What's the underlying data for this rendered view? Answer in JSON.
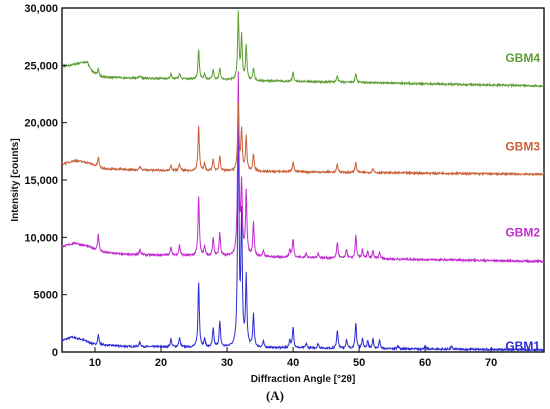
{
  "chart_data": {
    "type": "line",
    "title": "",
    "xlabel": "Diffraction Angle [°2θ]",
    "ylabel": "Intensity [counts]",
    "xlim": [
      5,
      78
    ],
    "ylim": [
      0,
      30000
    ],
    "xticks": [
      10,
      20,
      30,
      40,
      50,
      60,
      70
    ],
    "yticks": [
      0,
      5000,
      10000,
      15000,
      20000,
      25000,
      30000
    ],
    "ytick_labels": [
      "0",
      "5000",
      "10,000",
      "15,000",
      "20,000",
      "25,000",
      "30,000"
    ],
    "grid": false,
    "panel_label": "(A)",
    "series": [
      {
        "name": "GBM1",
        "color": "#2b2bd4",
        "background": [
          [
            5,
            1000
          ],
          [
            6.5,
            1300
          ],
          [
            8,
            1100
          ],
          [
            10,
            650
          ],
          [
            15,
            480
          ],
          [
            25,
            420
          ],
          [
            35,
            380
          ],
          [
            50,
            300
          ],
          [
            78,
            180
          ]
        ],
        "peaks": [
          {
            "x": 10.5,
            "h": 900
          },
          {
            "x": 16.8,
            "h": 450
          },
          {
            "x": 21.5,
            "h": 700
          },
          {
            "x": 22.8,
            "h": 800
          },
          {
            "x": 25.7,
            "h": 5600
          },
          {
            "x": 26.6,
            "h": 700
          },
          {
            "x": 27.9,
            "h": 1600
          },
          {
            "x": 28.9,
            "h": 2200
          },
          {
            "x": 31.7,
            "h": 20200
          },
          {
            "x": 32.2,
            "h": 11000
          },
          {
            "x": 32.9,
            "h": 6000
          },
          {
            "x": 34.0,
            "h": 2800
          },
          {
            "x": 35.5,
            "h": 500
          },
          {
            "x": 39.5,
            "h": 700
          },
          {
            "x": 40.0,
            "h": 1800
          },
          {
            "x": 42.0,
            "h": 400
          },
          {
            "x": 43.8,
            "h": 400
          },
          {
            "x": 46.7,
            "h": 1600
          },
          {
            "x": 48.1,
            "h": 800
          },
          {
            "x": 49.5,
            "h": 2200
          },
          {
            "x": 50.5,
            "h": 900
          },
          {
            "x": 51.3,
            "h": 700
          },
          {
            "x": 52.1,
            "h": 800
          },
          {
            "x": 53.1,
            "h": 700
          },
          {
            "x": 55.9,
            "h": 300
          },
          {
            "x": 60.0,
            "h": 250
          },
          {
            "x": 64.0,
            "h": 250
          }
        ]
      },
      {
        "name": "GBM2",
        "color": "#c02ccf",
        "background": [
          [
            5,
            9200
          ],
          [
            7,
            9500
          ],
          [
            9,
            9200
          ],
          [
            11,
            8700
          ],
          [
            15,
            8500
          ],
          [
            25,
            8400
          ],
          [
            35,
            8300
          ],
          [
            50,
            8150
          ],
          [
            78,
            7900
          ]
        ],
        "peaks": [
          {
            "x": 10.5,
            "h": 1500
          },
          {
            "x": 16.8,
            "h": 500
          },
          {
            "x": 21.5,
            "h": 700
          },
          {
            "x": 22.8,
            "h": 900
          },
          {
            "x": 25.7,
            "h": 5100
          },
          {
            "x": 26.6,
            "h": 800
          },
          {
            "x": 27.9,
            "h": 1500
          },
          {
            "x": 28.9,
            "h": 2000
          },
          {
            "x": 31.7,
            "h": 15800
          },
          {
            "x": 32.2,
            "h": 6000
          },
          {
            "x": 32.9,
            "h": 5600
          },
          {
            "x": 34.0,
            "h": 3000
          },
          {
            "x": 35.5,
            "h": 500
          },
          {
            "x": 39.5,
            "h": 700
          },
          {
            "x": 40.0,
            "h": 1600
          },
          {
            "x": 42.0,
            "h": 400
          },
          {
            "x": 43.8,
            "h": 400
          },
          {
            "x": 46.7,
            "h": 1400
          },
          {
            "x": 48.1,
            "h": 800
          },
          {
            "x": 49.5,
            "h": 2000
          },
          {
            "x": 50.5,
            "h": 800
          },
          {
            "x": 51.3,
            "h": 600
          },
          {
            "x": 52.1,
            "h": 700
          },
          {
            "x": 53.1,
            "h": 600
          }
        ]
      },
      {
        "name": "GBM3",
        "color": "#c8603a",
        "background": [
          [
            5,
            16400
          ],
          [
            7,
            16700
          ],
          [
            9,
            16500
          ],
          [
            11,
            16000
          ],
          [
            15,
            15900
          ],
          [
            25,
            15800
          ],
          [
            35,
            15750
          ],
          [
            50,
            15650
          ],
          [
            78,
            15500
          ]
        ],
        "peaks": [
          {
            "x": 10.5,
            "h": 900
          },
          {
            "x": 16.8,
            "h": 300
          },
          {
            "x": 21.5,
            "h": 400
          },
          {
            "x": 22.8,
            "h": 600
          },
          {
            "x": 25.7,
            "h": 3900
          },
          {
            "x": 26.6,
            "h": 600
          },
          {
            "x": 27.9,
            "h": 1000
          },
          {
            "x": 28.9,
            "h": 1300
          },
          {
            "x": 31.7,
            "h": 5800
          },
          {
            "x": 32.2,
            "h": 3500
          },
          {
            "x": 32.9,
            "h": 3000
          },
          {
            "x": 34.0,
            "h": 1500
          },
          {
            "x": 40.0,
            "h": 900
          },
          {
            "x": 46.7,
            "h": 700
          },
          {
            "x": 49.5,
            "h": 900
          },
          {
            "x": 52.1,
            "h": 400
          }
        ]
      },
      {
        "name": "GBM4",
        "color": "#5e9e33",
        "background": [
          [
            5,
            24900
          ],
          [
            7,
            25100
          ],
          [
            8.8,
            25300
          ],
          [
            9.5,
            24500
          ],
          [
            11,
            24000
          ],
          [
            15,
            23900
          ],
          [
            25,
            23800
          ],
          [
            35,
            23650
          ],
          [
            50,
            23500
          ],
          [
            78,
            23200
          ]
        ],
        "peaks": [
          {
            "x": 10.5,
            "h": 500
          },
          {
            "x": 16.8,
            "h": 200
          },
          {
            "x": 21.5,
            "h": 400
          },
          {
            "x": 22.8,
            "h": 500
          },
          {
            "x": 25.7,
            "h": 2600
          },
          {
            "x": 26.6,
            "h": 500
          },
          {
            "x": 27.9,
            "h": 900
          },
          {
            "x": 28.9,
            "h": 1000
          },
          {
            "x": 31.7,
            "h": 5800
          },
          {
            "x": 32.2,
            "h": 3800
          },
          {
            "x": 32.9,
            "h": 3000
          },
          {
            "x": 34.0,
            "h": 1100
          },
          {
            "x": 40.0,
            "h": 800
          },
          {
            "x": 46.7,
            "h": 600
          },
          {
            "x": 49.5,
            "h": 800
          }
        ]
      }
    ]
  }
}
